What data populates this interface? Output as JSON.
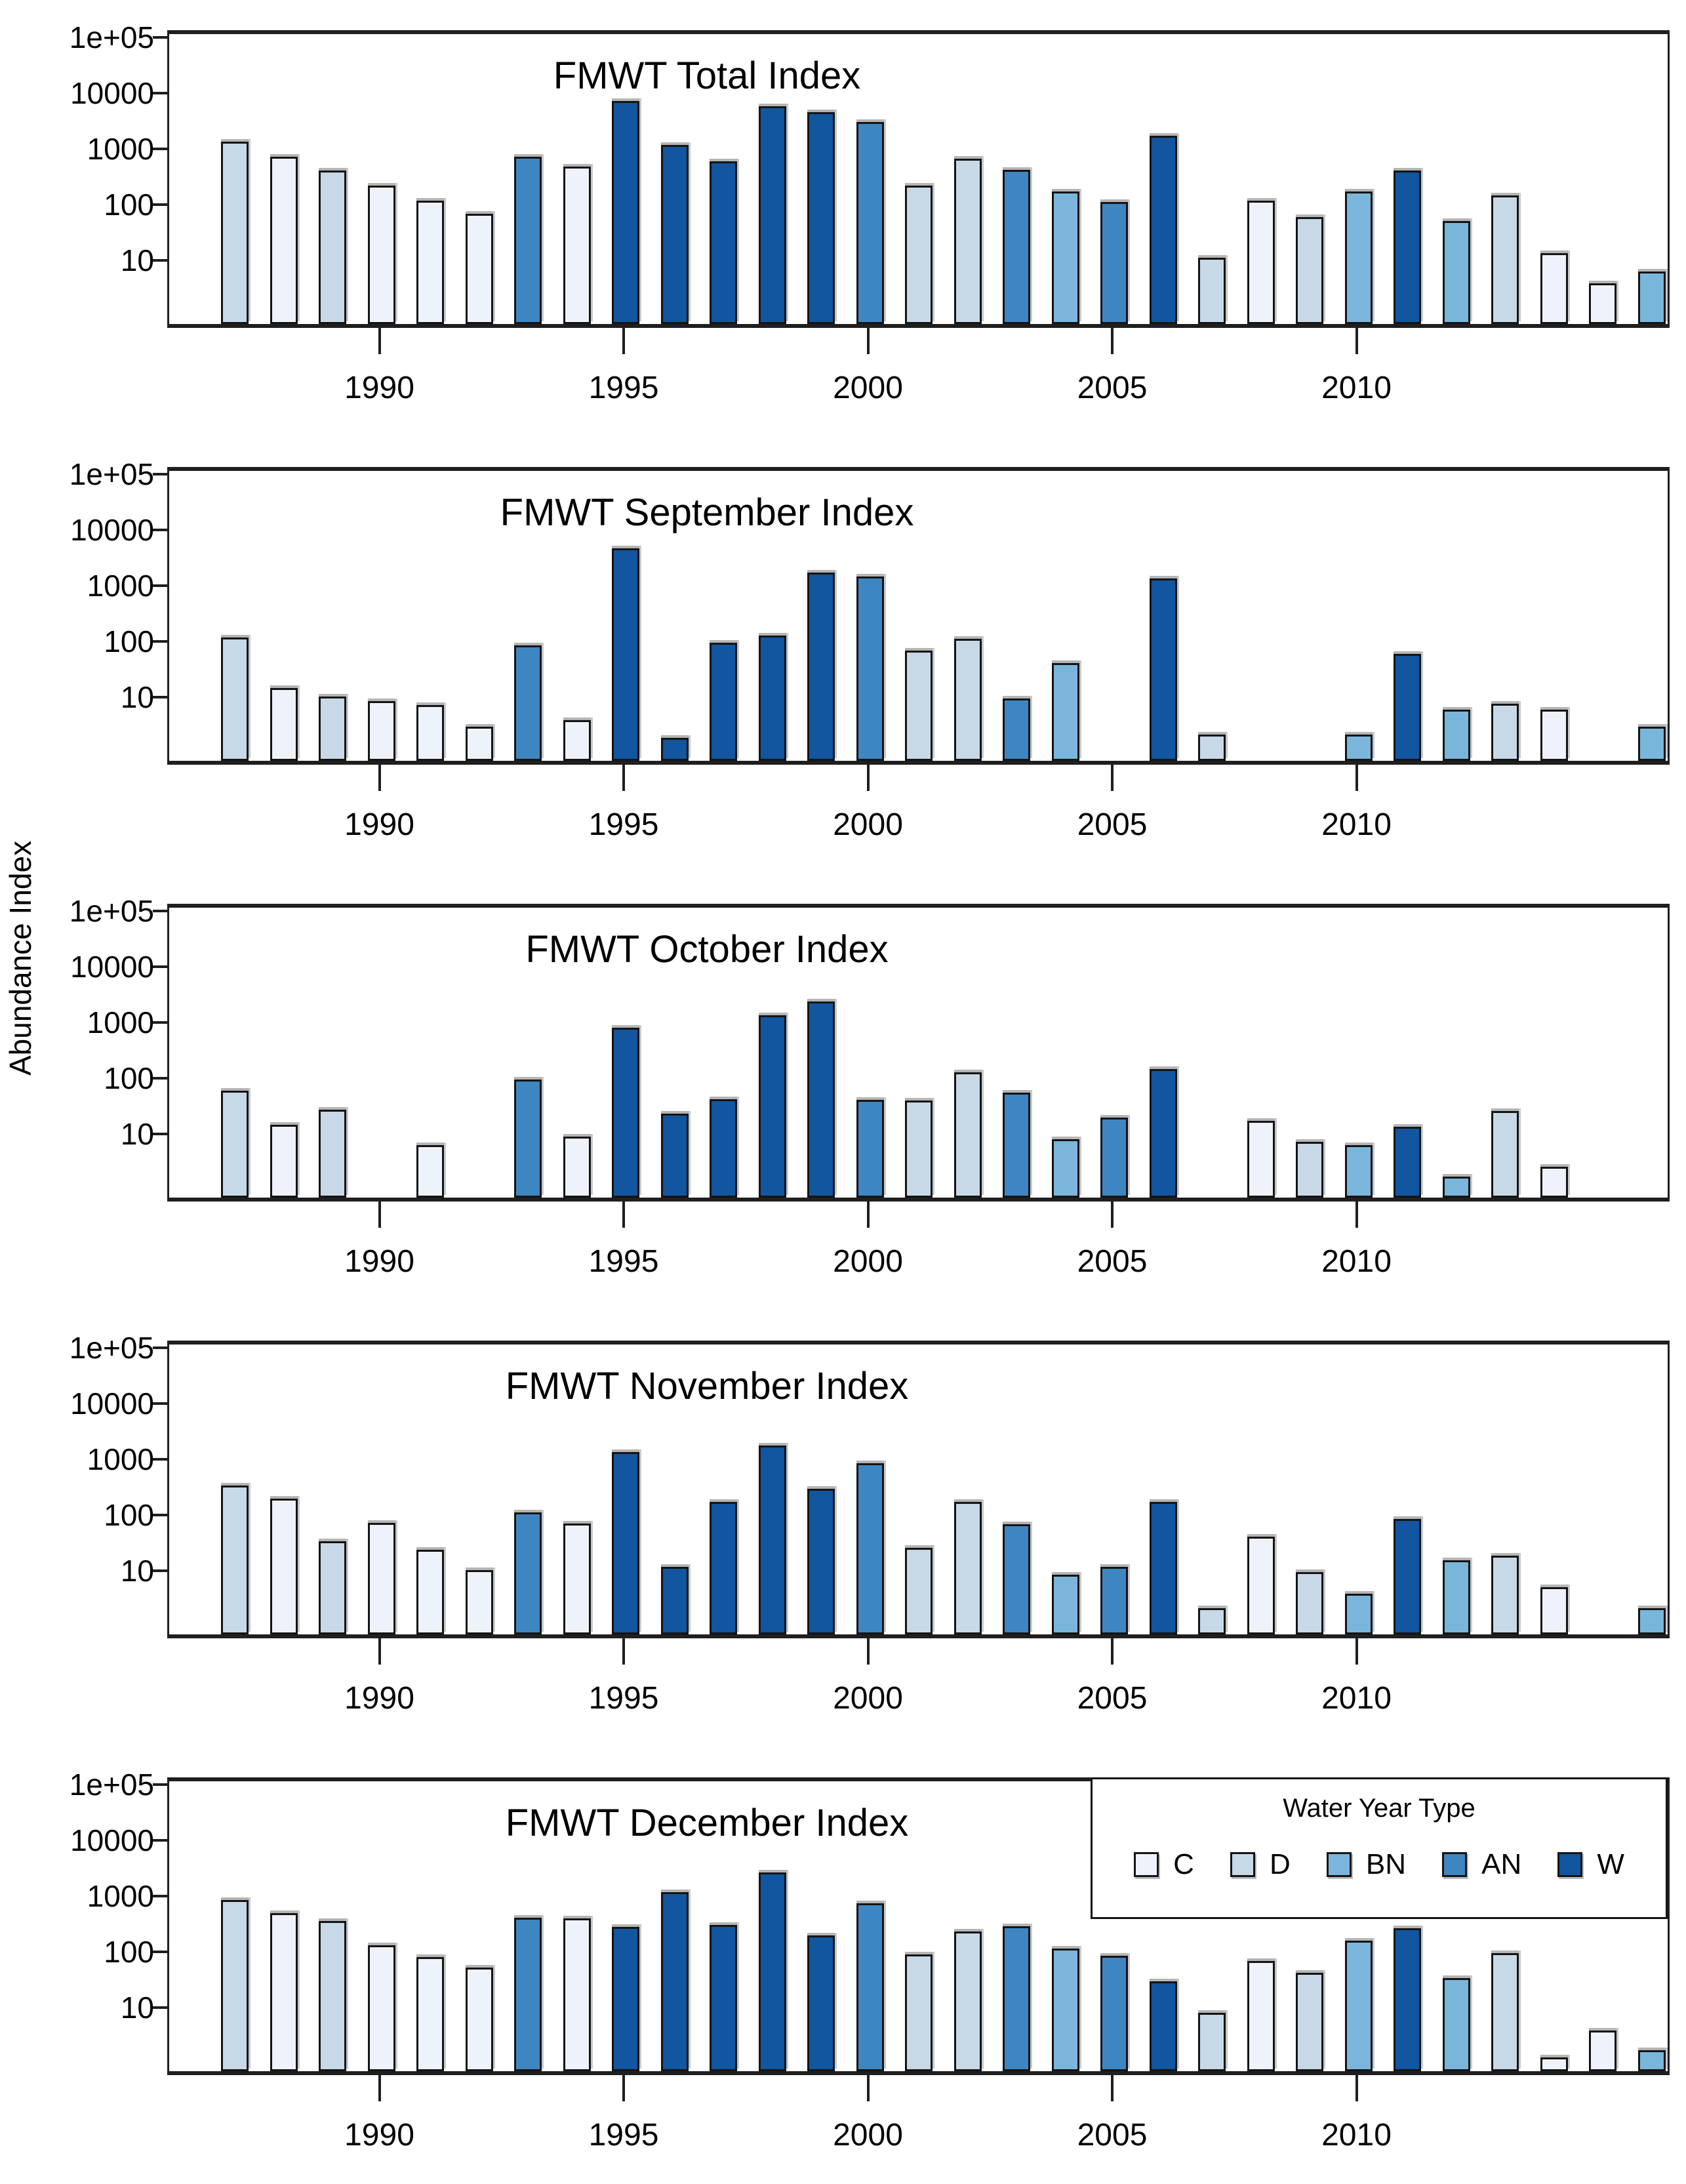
{
  "figure": {
    "y_axis_title": "Abundance Index"
  },
  "chart_data": {
    "type": "bar",
    "yscale": "log",
    "ylim": [
      1,
      100000
    ],
    "ylabel": "Abundance Index",
    "ytick_labels": [
      "10",
      "100",
      "1000",
      "10000",
      "1e+05"
    ],
    "xtick_years": [
      1990,
      1995,
      2000,
      2005,
      2010
    ],
    "grid": "off",
    "legend_position": "top-right of last panel",
    "years": [
      1987,
      1988,
      1989,
      1990,
      1991,
      1992,
      1993,
      1994,
      1995,
      1996,
      1997,
      1998,
      1999,
      2000,
      2001,
      2002,
      2003,
      2004,
      2005,
      2006,
      2007,
      2008,
      2009,
      2010,
      2011,
      2012,
      2013,
      2014,
      2015,
      2016
    ],
    "water_year_types": [
      "D",
      "C",
      "D",
      "C",
      "C",
      "C",
      "AN",
      "C",
      "W",
      "W",
      "W",
      "W",
      "W",
      "AN",
      "D",
      "D",
      "AN",
      "BN",
      "AN",
      "W",
      "D",
      "C",
      "D",
      "BN",
      "W",
      "BN",
      "D",
      "C",
      "C",
      "BN"
    ],
    "type_colors": {
      "C": "#eef3fb",
      "D": "#c7d9e7",
      "BN": "#7ab6dc",
      "AN": "#3e86c1",
      "W": "#11569f"
    },
    "legend": {
      "title": "Water Year Type",
      "order": [
        "C",
        "D",
        "BN",
        "AN",
        "W"
      ]
    },
    "panels": [
      {
        "title": "FMWT Total Index",
        "values": [
          1600,
          850,
          480,
          260,
          140,
          80,
          850,
          560,
          8500,
          1400,
          700,
          6800,
          5400,
          3600,
          260,
          780,
          500,
          200,
          130,
          2000,
          13,
          140,
          70,
          200,
          480,
          60,
          170,
          16,
          4.5,
          7.5
        ]
      },
      {
        "title": "FMWT September Index",
        "values": [
          140,
          17,
          12,
          10,
          8.5,
          3.5,
          100,
          4.5,
          5500,
          2.2,
          110,
          150,
          2000,
          1700,
          80,
          130,
          11,
          48,
          null,
          1600,
          2.5,
          null,
          null,
          2.5,
          70,
          7,
          9,
          7,
          null,
          3.5
        ]
      },
      {
        "title": "FMWT October Index",
        "values": [
          70,
          17,
          32,
          null,
          7.5,
          null,
          110,
          10.5,
          950,
          27,
          50,
          1600,
          2800,
          48,
          47,
          150,
          65,
          9.5,
          23,
          170,
          null,
          20,
          8.5,
          7.5,
          16,
          2,
          30,
          3,
          null,
          null
        ]
      },
      {
        "title": "FMWT November Index",
        "values": [
          400,
          230,
          40,
          85,
          28,
          12,
          130,
          82,
          1600,
          14,
          200,
          2100,
          350,
          1000,
          30,
          200,
          80,
          10,
          14,
          200,
          2.5,
          48,
          11,
          4.5,
          100,
          18,
          22,
          6,
          null,
          2.5
        ]
      },
      {
        "title": "FMWT December Index",
        "values": [
          1000,
          580,
          420,
          155,
          95,
          62,
          480,
          470,
          330,
          1400,
          360,
          3100,
          230,
          880,
          105,
          270,
          340,
          135,
          100,
          35,
          9.5,
          80,
          50,
          185,
          310,
          40,
          110,
          1.5,
          4.5,
          2
        ]
      }
    ]
  }
}
